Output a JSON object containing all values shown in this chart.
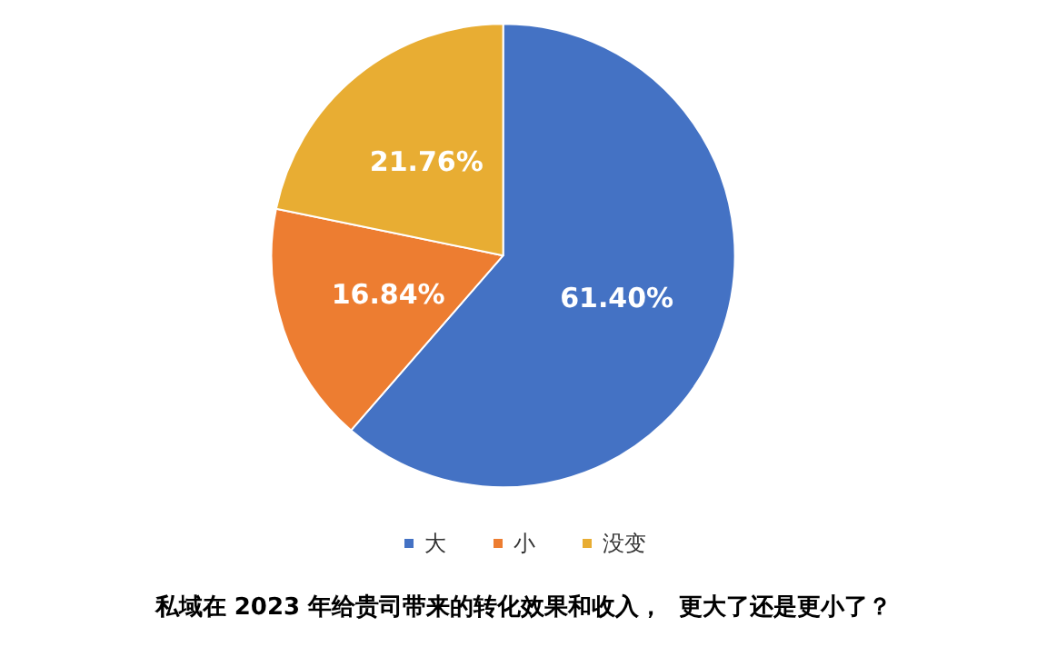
{
  "chart_data": {
    "type": "pie",
    "title": "私域在 2023 年给贵司带来的转化效果和收入，  更大了还是更小了？",
    "categories": [
      "大",
      "小",
      "没变"
    ],
    "values": [
      61.4,
      16.84,
      21.76
    ],
    "colors": [
      "#4472c4",
      "#ed7d31",
      "#e8ad33"
    ],
    "value_labels": [
      "61.40%",
      "16.84%",
      "21.76%"
    ],
    "legend": "bottom"
  }
}
